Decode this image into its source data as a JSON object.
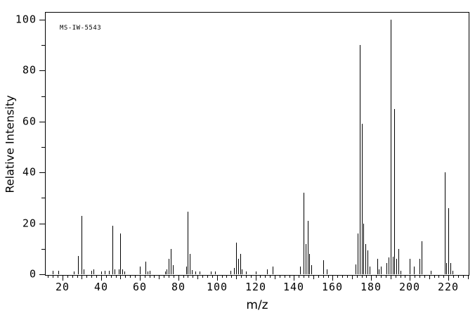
{
  "figure": {
    "watermark": "MS-IW-5543",
    "background_color": "#ffffff",
    "line_color": "#000000"
  },
  "chart_data": {
    "type": "bar",
    "subtype": "mass-spectrum",
    "title": "",
    "xlabel": "m/z",
    "ylabel": "Relative Intensity",
    "xlim": [
      10.9,
      230.5
    ],
    "ylim": [
      0,
      100
    ],
    "grid": false,
    "legend": false,
    "x_minor_tick_step": 2.5,
    "x_medium_tick_step": 10,
    "x_major_tick_step": 20,
    "y_minor_tick_step": 10,
    "y_major_tick_step": 20,
    "x_tick_labels": [
      "20",
      "40",
      "60",
      "80",
      "100",
      "120",
      "140",
      "160",
      "180",
      "200",
      "220"
    ],
    "x_tick_values": [
      20,
      40,
      60,
      80,
      100,
      120,
      140,
      160,
      180,
      200,
      220
    ],
    "y_tick_labels": [
      "0",
      "20",
      "40",
      "60",
      "80",
      "100"
    ],
    "y_tick_values": [
      0,
      20,
      40,
      60,
      80,
      100
    ],
    "peaks": [
      [
        15,
        1.5
      ],
      [
        18,
        1.5
      ],
      [
        26,
        1
      ],
      [
        28,
        7.3
      ],
      [
        30,
        23
      ],
      [
        31,
        2
      ],
      [
        35,
        1.5
      ],
      [
        36,
        2
      ],
      [
        40,
        1
      ],
      [
        42,
        1.5
      ],
      [
        44,
        1.5
      ],
      [
        46,
        19
      ],
      [
        47,
        2
      ],
      [
        49,
        2
      ],
      [
        50,
        16
      ],
      [
        51,
        2
      ],
      [
        52,
        1
      ],
      [
        60,
        3
      ],
      [
        63,
        5
      ],
      [
        64,
        1
      ],
      [
        65,
        1.5
      ],
      [
        73,
        1.2
      ],
      [
        74,
        2
      ],
      [
        75,
        6
      ],
      [
        76,
        10
      ],
      [
        77,
        3.5
      ],
      [
        84,
        3
      ],
      [
        85,
        24.5
      ],
      [
        86,
        8
      ],
      [
        87,
        1.7
      ],
      [
        89,
        1
      ],
      [
        91,
        1
      ],
      [
        97,
        1
      ],
      [
        99,
        1
      ],
      [
        107,
        1.5
      ],
      [
        109,
        2.5
      ],
      [
        110,
        12.3
      ],
      [
        111,
        6
      ],
      [
        112,
        8
      ],
      [
        113,
        2
      ],
      [
        115,
        1
      ],
      [
        120,
        1
      ],
      [
        126,
        2
      ],
      [
        129,
        3
      ],
      [
        143,
        3
      ],
      [
        145,
        32
      ],
      [
        146,
        12
      ],
      [
        147,
        21
      ],
      [
        148,
        8
      ],
      [
        149,
        3.5
      ],
      [
        155,
        5.5
      ],
      [
        157,
        2
      ],
      [
        172,
        4
      ],
      [
        173,
        16
      ],
      [
        174,
        90
      ],
      [
        175,
        59
      ],
      [
        176,
        20
      ],
      [
        177,
        12
      ],
      [
        178,
        9.5
      ],
      [
        179,
        3
      ],
      [
        183,
        6
      ],
      [
        184,
        2
      ],
      [
        185,
        3
      ],
      [
        188,
        4.5
      ],
      [
        189,
        6.5
      ],
      [
        190,
        100
      ],
      [
        191,
        7
      ],
      [
        192,
        65
      ],
      [
        193,
        6
      ],
      [
        194,
        10
      ],
      [
        195,
        1.5
      ],
      [
        200,
        6
      ],
      [
        202,
        3
      ],
      [
        205,
        6
      ],
      [
        206,
        13
      ],
      [
        211,
        1.5
      ],
      [
        218,
        40
      ],
      [
        219,
        4.5
      ],
      [
        220,
        26
      ],
      [
        221,
        4.5
      ],
      [
        222,
        1.5
      ]
    ]
  }
}
